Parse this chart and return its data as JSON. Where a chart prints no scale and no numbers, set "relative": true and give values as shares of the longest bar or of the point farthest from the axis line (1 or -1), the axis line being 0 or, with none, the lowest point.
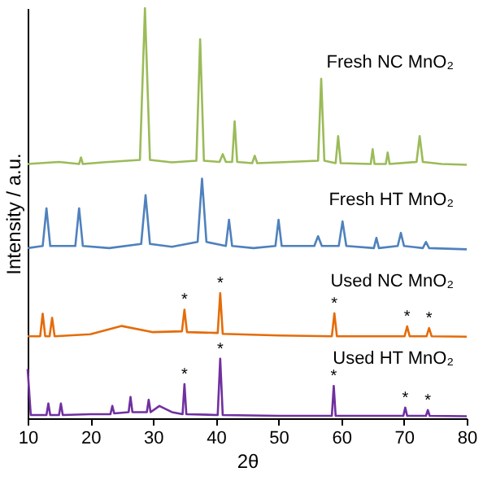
{
  "chart_data": {
    "type": "line",
    "relative": true,
    "xlabel": "2θ",
    "ylabel": "Intensity / a.u.",
    "xlim": [
      10,
      80
    ],
    "xticks": [
      10,
      20,
      30,
      40,
      50,
      60,
      70,
      80
    ],
    "grid": false,
    "legend": false,
    "marker": "none",
    "line_style": "solid",
    "series": [
      {
        "name": "Fresh NC MnO₂",
        "color": "#9bbb59",
        "x": [
          10,
          15,
          18.2,
          18.5,
          18.8,
          22,
          27.9,
          28.7,
          29.5,
          33,
          36.9,
          37.5,
          38.1,
          40.6,
          41.1,
          41.6,
          42.6,
          43,
          43.4,
          45.8,
          46.2,
          46.6,
          50,
          56.3,
          56.8,
          57.3,
          59.1,
          59.5,
          59.9,
          64.7,
          65,
          65.3,
          67.1,
          67.4,
          67.7,
          72,
          72.5,
          73,
          76,
          80
        ],
        "values": [
          0.62,
          0.625,
          0.62,
          0.636,
          0.62,
          0.624,
          0.63,
          1.0,
          0.63,
          0.624,
          0.628,
          0.924,
          0.628,
          0.625,
          0.644,
          0.625,
          0.625,
          0.724,
          0.625,
          0.622,
          0.64,
          0.622,
          0.624,
          0.628,
          0.828,
          0.628,
          0.622,
          0.688,
          0.622,
          0.62,
          0.656,
          0.62,
          0.62,
          0.648,
          0.62,
          0.625,
          0.688,
          0.625,
          0.62,
          0.618
        ]
      },
      {
        "name": "Fresh HT MnO₂",
        "color": "#4f81bd",
        "x": [
          10,
          12.4,
          13,
          13.6,
          17.6,
          18.2,
          18.8,
          23,
          28.1,
          28.8,
          29.5,
          33,
          37.1,
          37.8,
          38.5,
          41.6,
          42.1,
          42.6,
          46,
          49.5,
          50,
          50.5,
          55.7,
          56.3,
          56.9,
          59.6,
          60.2,
          60.8,
          65.2,
          65.6,
          66,
          69,
          69.5,
          70,
          73,
          73.5,
          74,
          80
        ],
        "values": [
          0.415,
          0.42,
          0.512,
          0.42,
          0.42,
          0.512,
          0.42,
          0.415,
          0.425,
          0.544,
          0.425,
          0.418,
          0.43,
          0.584,
          0.43,
          0.42,
          0.484,
          0.42,
          0.415,
          0.42,
          0.484,
          0.42,
          0.42,
          0.444,
          0.42,
          0.42,
          0.48,
          0.42,
          0.415,
          0.44,
          0.415,
          0.42,
          0.452,
          0.42,
          0.415,
          0.43,
          0.415,
          0.412
        ]
      },
      {
        "name": "Used NC MnO₂",
        "color": "#e46c0a",
        "x": [
          10,
          12,
          12.4,
          12.8,
          13.5,
          13.9,
          14.3,
          20,
          25,
          30,
          34.6,
          35,
          35.4,
          40.3,
          40.7,
          41.1,
          50,
          58.5,
          58.9,
          59.3,
          70.1,
          70.5,
          70.9,
          73.6,
          74,
          74.4,
          80
        ],
        "values": [
          0.2,
          0.2,
          0.255,
          0.2,
          0.2,
          0.245,
          0.2,
          0.205,
          0.225,
          0.21,
          0.212,
          0.265,
          0.21,
          0.208,
          0.305,
          0.206,
          0.202,
          0.2,
          0.256,
          0.2,
          0.2,
          0.224,
          0.2,
          0.2,
          0.22,
          0.2,
          0.199
        ]
      },
      {
        "name": "Used HT MnO₂",
        "color": "#7030a0",
        "x": [
          10,
          10.5,
          13,
          13.3,
          13.6,
          15,
          15.3,
          15.6,
          20,
          23.2,
          23.5,
          23.8,
          26.1,
          26.4,
          26.7,
          29,
          29.3,
          29.6,
          31,
          33,
          34.7,
          35,
          35.3,
          40.3,
          40.7,
          41.1,
          50,
          58.5,
          58.8,
          59.1,
          69.9,
          70.2,
          70.5,
          73.5,
          73.8,
          74.1,
          80
        ],
        "values": [
          0.12,
          0.008,
          0.008,
          0.036,
          0.008,
          0.008,
          0.036,
          0.008,
          0.01,
          0.01,
          0.03,
          0.012,
          0.015,
          0.052,
          0.015,
          0.015,
          0.045,
          0.015,
          0.03,
          0.015,
          0.01,
          0.083,
          0.01,
          0.008,
          0.145,
          0.008,
          0.006,
          0.006,
          0.079,
          0.006,
          0.006,
          0.026,
          0.006,
          0.006,
          0.02,
          0.006,
          0.005
        ]
      }
    ],
    "annotations": [
      {
        "text": "*",
        "x": 35,
        "y": 0.265
      },
      {
        "text": "*",
        "x": 40.7,
        "y": 0.305
      },
      {
        "text": "*",
        "x": 58.9,
        "y": 0.256
      },
      {
        "text": "*",
        "x": 70.5,
        "y": 0.224
      },
      {
        "text": "*",
        "x": 74,
        "y": 0.22
      },
      {
        "text": "*",
        "x": 35,
        "y": 0.083
      },
      {
        "text": "*",
        "x": 40.7,
        "y": 0.145
      },
      {
        "text": "*",
        "x": 58.8,
        "y": 0.079
      },
      {
        "text": "*",
        "x": 70.2,
        "y": 0.026
      },
      {
        "text": "*",
        "x": 73.8,
        "y": 0.02
      }
    ]
  }
}
